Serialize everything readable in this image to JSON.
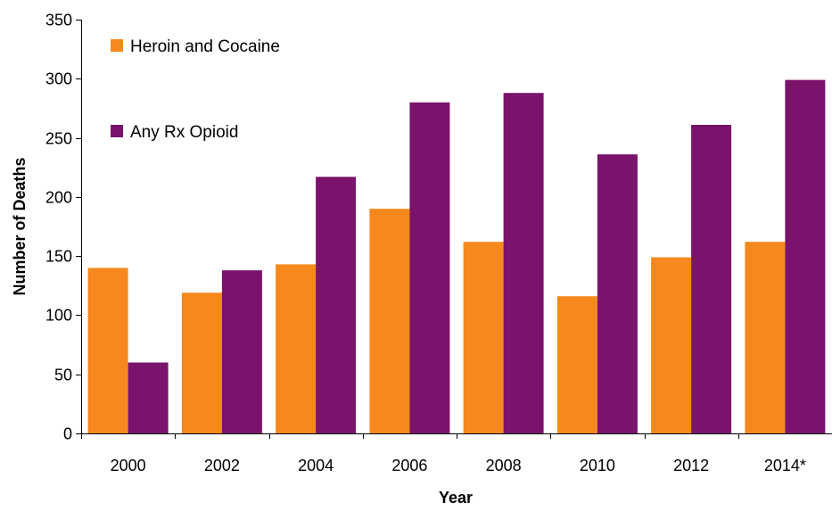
{
  "chart_data": {
    "type": "bar",
    "categories": [
      "2000",
      "2002",
      "2004",
      "2006",
      "2008",
      "2010",
      "2012",
      "2014*"
    ],
    "series": [
      {
        "name": "Heroin and Cocaine",
        "color": "#f7881d",
        "values": [
          140,
          119,
          143,
          190,
          162,
          116,
          149,
          162
        ]
      },
      {
        "name": "Any Rx Opioid",
        "color": "#7a136b",
        "values": [
          60,
          138,
          217,
          280,
          288,
          236,
          261,
          299
        ]
      }
    ],
    "title": "",
    "xlabel": "Year",
    "ylabel": "Number of Deaths",
    "ylim": [
      0,
      350
    ],
    "yticks": [
      0,
      50,
      100,
      150,
      200,
      250,
      300,
      350
    ],
    "grid": false,
    "legend": "top-left"
  }
}
